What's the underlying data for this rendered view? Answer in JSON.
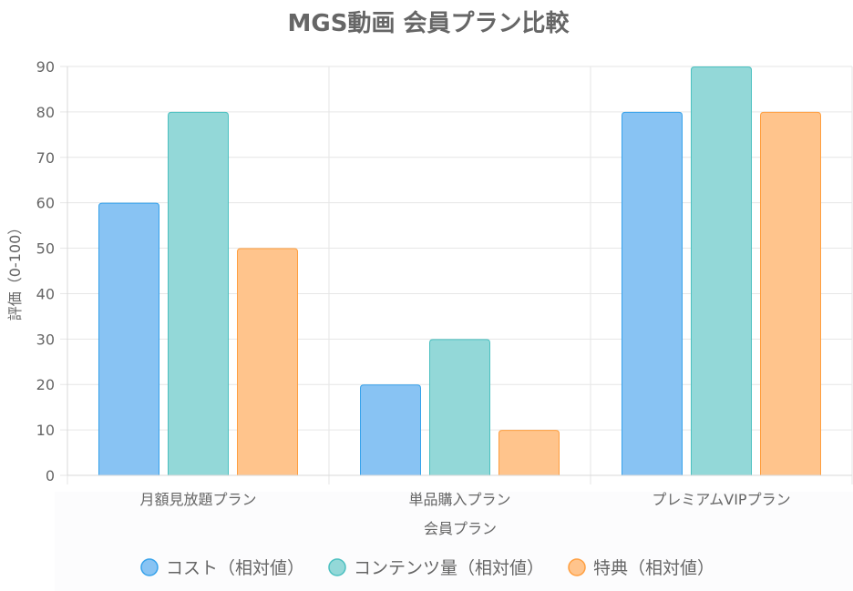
{
  "chart_data": {
    "type": "bar",
    "title": "MGS動画 会員プラン比較",
    "xlabel": "会員プラン",
    "ylabel": "評価（0-100）",
    "ylim": [
      0,
      90
    ],
    "yticks": [
      0,
      10,
      20,
      30,
      40,
      50,
      60,
      70,
      80,
      90
    ],
    "grid": true,
    "legend_position": "bottom",
    "categories": [
      "月額見放題プラン",
      "単品購入プラン",
      "プレミアムVIPプラン"
    ],
    "series": [
      {
        "name": "コスト（相対値）",
        "values": [
          60,
          20,
          80
        ],
        "color": "#36a2eb",
        "fill": "#88c3f3"
      },
      {
        "name": "コンテンツ量（相対値）",
        "values": [
          80,
          30,
          90
        ],
        "color": "#4bc0c0",
        "fill": "#93d8d8"
      },
      {
        "name": "特典（相対値）",
        "values": [
          50,
          10,
          80
        ],
        "color": "#ff9f40",
        "fill": "#ffc48c"
      }
    ]
  }
}
